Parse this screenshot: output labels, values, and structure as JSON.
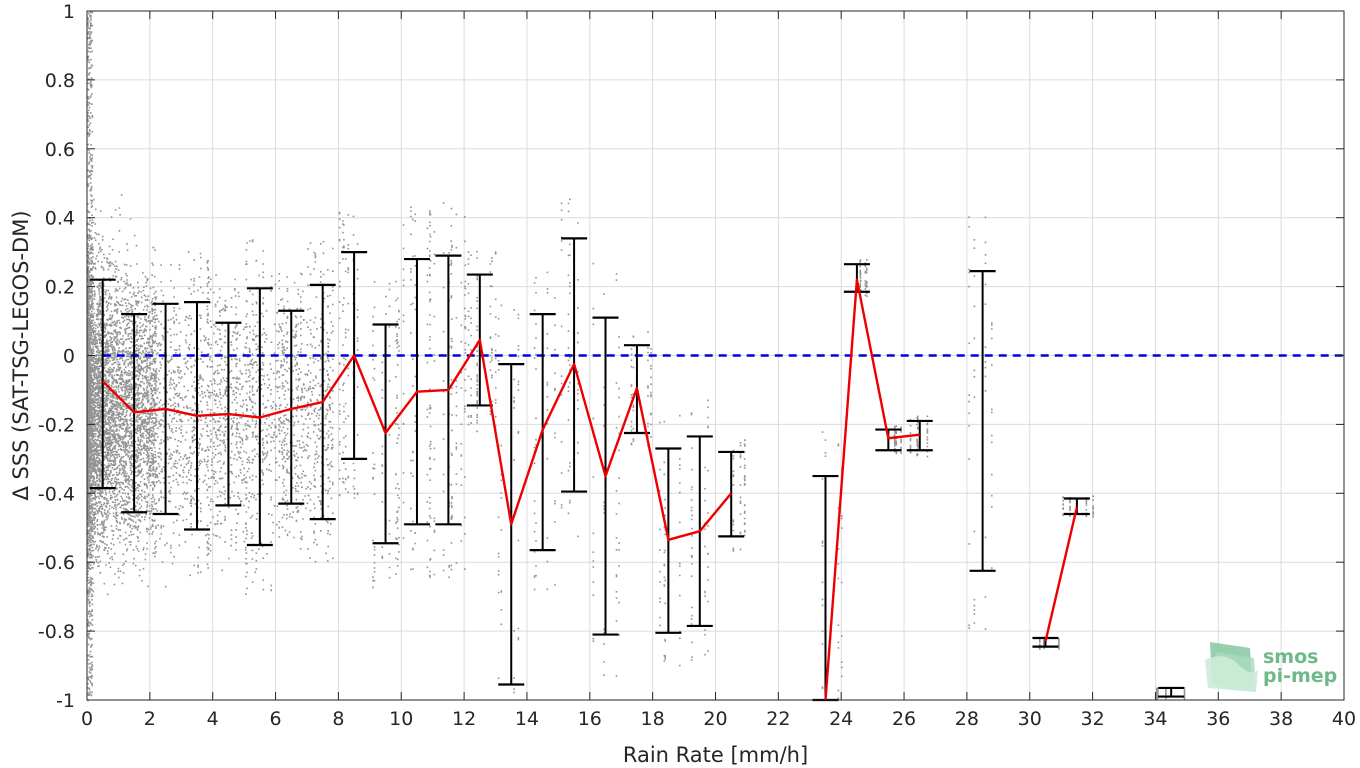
{
  "chart_data": {
    "type": "scatter",
    "title": "",
    "xlabel": "Rain Rate [mm/h]",
    "ylabel": "Δ SSS (SAT-TSG-LEGOS-DM)",
    "xlim": [
      0,
      40
    ],
    "ylim": [
      -1,
      1
    ],
    "xticks": [
      0,
      2,
      4,
      6,
      8,
      10,
      12,
      14,
      16,
      18,
      20,
      22,
      24,
      26,
      28,
      30,
      32,
      34,
      36,
      38,
      40
    ],
    "yticks": [
      -1,
      -0.8,
      -0.6,
      -0.4,
      -0.2,
      0,
      0.2,
      0.4,
      0.6,
      0.8,
      1
    ],
    "ytick_labels": [
      "-1",
      "-0.8",
      "-0.6",
      "-0.4",
      "-0.2",
      "0",
      "0.2",
      "0.4",
      "0.6",
      "0.8",
      "1"
    ],
    "grid": true,
    "reference_line": {
      "y": 0,
      "color": "#0000dd",
      "style": "dashed"
    },
    "mean_line": {
      "color": "#ee0000",
      "segments": [
        [
          [
            0.5,
            -0.075
          ],
          [
            1.5,
            -0.165
          ],
          [
            2.5,
            -0.155
          ],
          [
            3.5,
            -0.175
          ],
          [
            4.5,
            -0.17
          ],
          [
            5.5,
            -0.18
          ],
          [
            6.5,
            -0.155
          ],
          [
            7.5,
            -0.135
          ],
          [
            8.5,
            -0.0
          ],
          [
            9.5,
            -0.225
          ],
          [
            10.5,
            -0.105
          ],
          [
            11.5,
            -0.1
          ],
          [
            12.5,
            0.045
          ],
          [
            13.5,
            -0.49
          ],
          [
            14.5,
            -0.215
          ],
          [
            15.5,
            -0.025
          ],
          [
            16.5,
            -0.35
          ],
          [
            17.5,
            -0.095
          ],
          [
            18.5,
            -0.535
          ],
          [
            19.5,
            -0.51
          ],
          [
            20.5,
            -0.4
          ]
        ],
        [
          [
            23.5,
            -1.0
          ],
          [
            24.5,
            0.22
          ],
          [
            25.5,
            -0.24
          ],
          [
            26.5,
            -0.23
          ]
        ],
        [
          [
            30.5,
            -0.83
          ],
          [
            31.5,
            -0.44
          ]
        ]
      ]
    },
    "error_bars": [
      {
        "x": 0.5,
        "low": -0.385,
        "high": 0.22
      },
      {
        "x": 1.5,
        "low": -0.455,
        "high": 0.12
      },
      {
        "x": 2.5,
        "low": -0.46,
        "high": 0.15
      },
      {
        "x": 3.5,
        "low": -0.505,
        "high": 0.155
      },
      {
        "x": 4.5,
        "low": -0.435,
        "high": 0.095
      },
      {
        "x": 5.5,
        "low": -0.55,
        "high": 0.195
      },
      {
        "x": 6.5,
        "low": -0.43,
        "high": 0.13
      },
      {
        "x": 7.5,
        "low": -0.475,
        "high": 0.205
      },
      {
        "x": 8.5,
        "low": -0.3,
        "high": 0.3
      },
      {
        "x": 9.5,
        "low": -0.545,
        "high": 0.09
      },
      {
        "x": 10.5,
        "low": -0.49,
        "high": 0.28
      },
      {
        "x": 11.5,
        "low": -0.49,
        "high": 0.29
      },
      {
        "x": 12.5,
        "low": -0.145,
        "high": 0.235
      },
      {
        "x": 13.5,
        "low": -0.955,
        "high": -0.025
      },
      {
        "x": 14.5,
        "low": -0.565,
        "high": 0.12
      },
      {
        "x": 15.5,
        "low": -0.395,
        "high": 0.34
      },
      {
        "x": 16.5,
        "low": -0.81,
        "high": 0.11
      },
      {
        "x": 17.5,
        "low": -0.225,
        "high": 0.03
      },
      {
        "x": 18.5,
        "low": -0.805,
        "high": -0.27
      },
      {
        "x": 19.5,
        "low": -0.785,
        "high": -0.235
      },
      {
        "x": 20.5,
        "low": -0.525,
        "high": -0.28
      },
      {
        "x": 23.5,
        "low": -1.0,
        "high": -0.35
      },
      {
        "x": 24.5,
        "low": 0.185,
        "high": 0.265
      },
      {
        "x": 25.5,
        "low": -0.275,
        "high": -0.215
      },
      {
        "x": 26.5,
        "low": -0.275,
        "high": -0.19
      },
      {
        "x": 28.5,
        "low": -0.625,
        "high": 0.245
      },
      {
        "x": 30.5,
        "low": -0.845,
        "high": -0.82
      },
      {
        "x": 31.5,
        "low": -0.46,
        "high": -0.415
      },
      {
        "x": 34.5,
        "low": -0.99,
        "high": -0.965
      }
    ],
    "scatter_color": "#808080"
  },
  "logo": {
    "line1": "smos",
    "line2": "pi-mep"
  }
}
